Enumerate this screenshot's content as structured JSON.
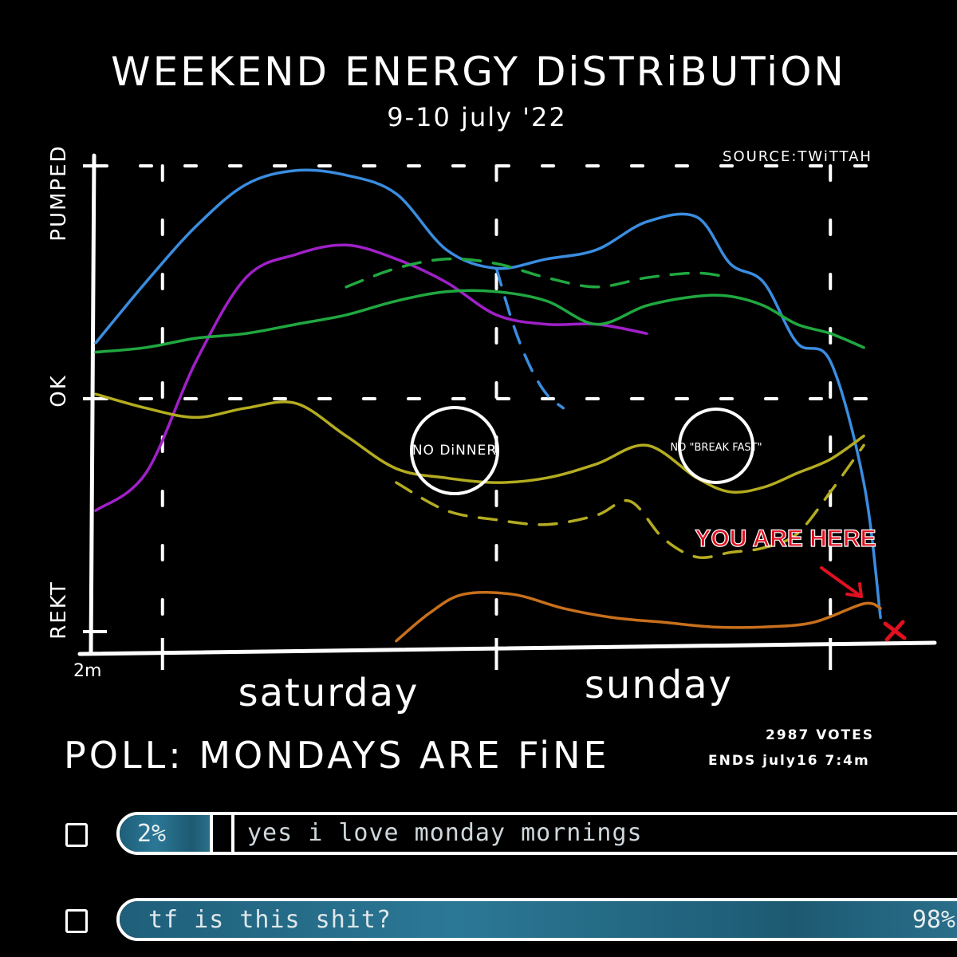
{
  "chart_data": {
    "type": "line",
    "title": "WEEKEND ENERGY DiSTRiBUTiON",
    "subtitle": "9-10 july '22",
    "source": "SOURCE:TWiTTAH",
    "y_tick_labels": [
      "REKT",
      "OK",
      "PUMPED"
    ],
    "y_range": [
      0,
      10
    ],
    "x_start_label": "2m",
    "day_labels": [
      "saturday",
      "sunday"
    ],
    "x_range": [
      0,
      48
    ],
    "grid": true,
    "series": [
      {
        "color": "#3a8de0",
        "style": "solid",
        "x": [
          0,
          3,
          6,
          9,
          12,
          15,
          18,
          21,
          24,
          27,
          30,
          33,
          36,
          38,
          40,
          42,
          44,
          46,
          47
        ],
        "y": [
          6.2,
          7.5,
          8.7,
          9.6,
          9.9,
          9.8,
          9.4,
          8.2,
          7.8,
          8.0,
          8.2,
          8.8,
          8.9,
          7.9,
          7.5,
          6.2,
          5.8,
          3.2,
          0.3
        ]
      },
      {
        "color": "#3a8de0",
        "style": "dashed",
        "x": [
          24,
          25,
          26,
          27,
          28
        ],
        "y": [
          7.8,
          6.6,
          5.7,
          5.1,
          4.8
        ]
      },
      {
        "color": "#a020c8",
        "style": "solid",
        "x": [
          0,
          3,
          6,
          9,
          12,
          15,
          18,
          21,
          24,
          27,
          30,
          33
        ],
        "y": [
          2.6,
          3.4,
          5.8,
          7.6,
          8.1,
          8.3,
          8.0,
          7.5,
          6.8,
          6.6,
          6.6,
          6.4
        ]
      },
      {
        "color": "#20a840",
        "style": "solid",
        "x": [
          0,
          3,
          6,
          9,
          12,
          15,
          18,
          21,
          24,
          27,
          30,
          33,
          36,
          38,
          40,
          42,
          44,
          46
        ],
        "y": [
          6.0,
          6.1,
          6.3,
          6.4,
          6.6,
          6.8,
          7.1,
          7.3,
          7.3,
          7.1,
          6.6,
          7.0,
          7.2,
          7.2,
          7.0,
          6.6,
          6.4,
          6.1
        ]
      },
      {
        "color": "#20a840",
        "style": "dashed",
        "x": [
          15,
          18,
          21,
          24,
          27,
          30,
          33,
          36,
          38
        ],
        "y": [
          7.4,
          7.8,
          8.0,
          7.9,
          7.6,
          7.4,
          7.6,
          7.7,
          7.6
        ]
      },
      {
        "color": "#b4ac20",
        "style": "solid",
        "x": [
          0,
          3,
          6,
          9,
          12,
          15,
          18,
          21,
          24,
          27,
          30,
          33,
          36,
          38,
          40,
          42,
          44,
          46
        ],
        "y": [
          5.1,
          4.8,
          4.6,
          4.8,
          4.9,
          4.2,
          3.5,
          3.3,
          3.2,
          3.3,
          3.6,
          4.0,
          3.3,
          3.0,
          3.1,
          3.4,
          3.7,
          4.2
        ]
      },
      {
        "color": "#b4ac20",
        "style": "dashed",
        "x": [
          18,
          21,
          24,
          27,
          30,
          32,
          34,
          36,
          38,
          40,
          42,
          44,
          46
        ],
        "y": [
          3.2,
          2.6,
          2.4,
          2.3,
          2.5,
          2.8,
          2.0,
          1.6,
          1.7,
          1.8,
          2.1,
          3.0,
          4.0
        ]
      },
      {
        "color": "#c8701c",
        "style": "solid",
        "x": [
          18,
          20,
          22,
          25,
          28,
          31,
          34,
          37,
          40,
          43,
          46,
          47
        ],
        "y": [
          -0.2,
          0.4,
          0.8,
          0.8,
          0.5,
          0.3,
          0.2,
          0.1,
          0.1,
          0.2,
          0.6,
          0.5
        ]
      }
    ],
    "annotations": {
      "no_dinner": "NO DiNNER",
      "no_breakfast": "NO \"BREAK FAST\"",
      "you_are_here": "YOU ARE HERE"
    }
  },
  "poll": {
    "title": "POLL: MONDAYS ARE FiNE",
    "votes": "2987 VOTES",
    "ends": "ENDS july16 7:4m",
    "options": [
      {
        "label": "yes i love monday mornings",
        "percent_text": "2%",
        "fraction": 0.02,
        "fill_color": "#2a7592"
      },
      {
        "label": "tf is this shit?",
        "percent_text": "98%",
        "fraction": 0.98,
        "fill_color": "#2a7592"
      }
    ]
  }
}
